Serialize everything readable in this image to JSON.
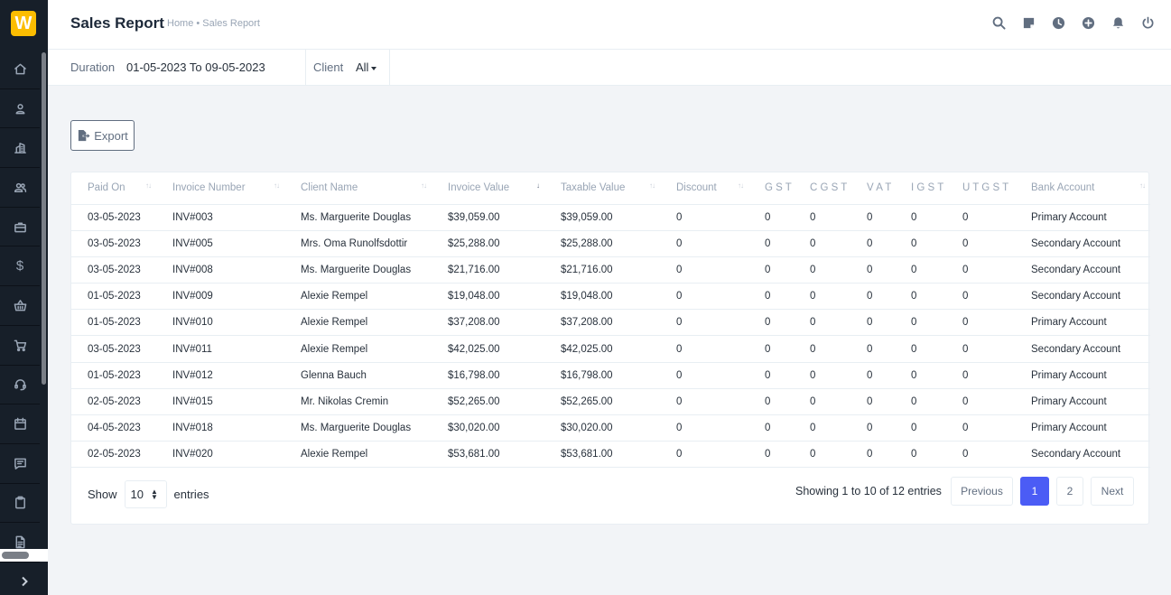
{
  "sidebar": {
    "logo_letter": "W",
    "items": [
      "home-icon",
      "user-icon",
      "building-icon",
      "users-icon",
      "briefcase-icon",
      "dollar-icon",
      "basket-icon",
      "cart-icon",
      "headset-icon",
      "calendar-icon",
      "message-icon",
      "clipboard-icon",
      "document-icon"
    ],
    "dollar_glyph": "$"
  },
  "header": {
    "title": "Sales Report",
    "breadcrumb": "Home • Sales Report",
    "icons": [
      "search-icon",
      "sticky-note-icon",
      "clock-icon",
      "plus-circle-icon",
      "bell-icon",
      "power-icon"
    ]
  },
  "filters": {
    "duration_label": "Duration",
    "duration_value": "01-05-2023 To 09-05-2023",
    "client_label": "Client",
    "client_value": "All"
  },
  "export_label": "Export",
  "table": {
    "columns": [
      "Paid On",
      "Invoice Number",
      "Client Name",
      "Invoice Value",
      "Taxable Value",
      "Discount",
      "G S T",
      "C G S T",
      "V A T",
      "I G S T",
      "U T G S T",
      "Bank Account"
    ],
    "rows": [
      [
        "03-05-2023",
        "INV#003",
        "Ms. Marguerite Douglas",
        "$39,059.00",
        "$39,059.00",
        "0",
        "0",
        "0",
        "0",
        "0",
        "0",
        "Primary Account"
      ],
      [
        "03-05-2023",
        "INV#005",
        "Mrs. Oma Runolfsdottir",
        "$25,288.00",
        "$25,288.00",
        "0",
        "0",
        "0",
        "0",
        "0",
        "0",
        "Secondary Account"
      ],
      [
        "03-05-2023",
        "INV#008",
        "Ms. Marguerite Douglas",
        "$21,716.00",
        "$21,716.00",
        "0",
        "0",
        "0",
        "0",
        "0",
        "0",
        "Secondary Account"
      ],
      [
        "01-05-2023",
        "INV#009",
        "Alexie Rempel",
        "$19,048.00",
        "$19,048.00",
        "0",
        "0",
        "0",
        "0",
        "0",
        "0",
        "Secondary Account"
      ],
      [
        "01-05-2023",
        "INV#010",
        "Alexie Rempel",
        "$37,208.00",
        "$37,208.00",
        "0",
        "0",
        "0",
        "0",
        "0",
        "0",
        "Primary Account"
      ],
      [
        "03-05-2023",
        "INV#011",
        "Alexie Rempel",
        "$42,025.00",
        "$42,025.00",
        "0",
        "0",
        "0",
        "0",
        "0",
        "0",
        "Secondary Account"
      ],
      [
        "01-05-2023",
        "INV#012",
        "Glenna Bauch",
        "$16,798.00",
        "$16,798.00",
        "0",
        "0",
        "0",
        "0",
        "0",
        "0",
        "Primary Account"
      ],
      [
        "02-05-2023",
        "INV#015",
        "Mr. Nikolas Cremin",
        "$52,265.00",
        "$52,265.00",
        "0",
        "0",
        "0",
        "0",
        "0",
        "0",
        "Primary Account"
      ],
      [
        "04-05-2023",
        "INV#018",
        "Ms. Marguerite Douglas",
        "$30,020.00",
        "$30,020.00",
        "0",
        "0",
        "0",
        "0",
        "0",
        "0",
        "Primary Account"
      ],
      [
        "02-05-2023",
        "INV#020",
        "Alexie Rempel",
        "$53,681.00",
        "$53,681.00",
        "0",
        "0",
        "0",
        "0",
        "0",
        "0",
        "Secondary Account"
      ]
    ]
  },
  "footer": {
    "show_label": "Show",
    "entries_value": "10",
    "entries_label": "entries",
    "showing_text": "Showing 1 to 10 of 12 entries",
    "previous": "Previous",
    "pages": [
      "1",
      "2"
    ],
    "next": "Next"
  },
  "colors": {
    "sidebar_bg": "#171f29",
    "accent": "#4b5cf5",
    "logo": "#fcbd01"
  }
}
